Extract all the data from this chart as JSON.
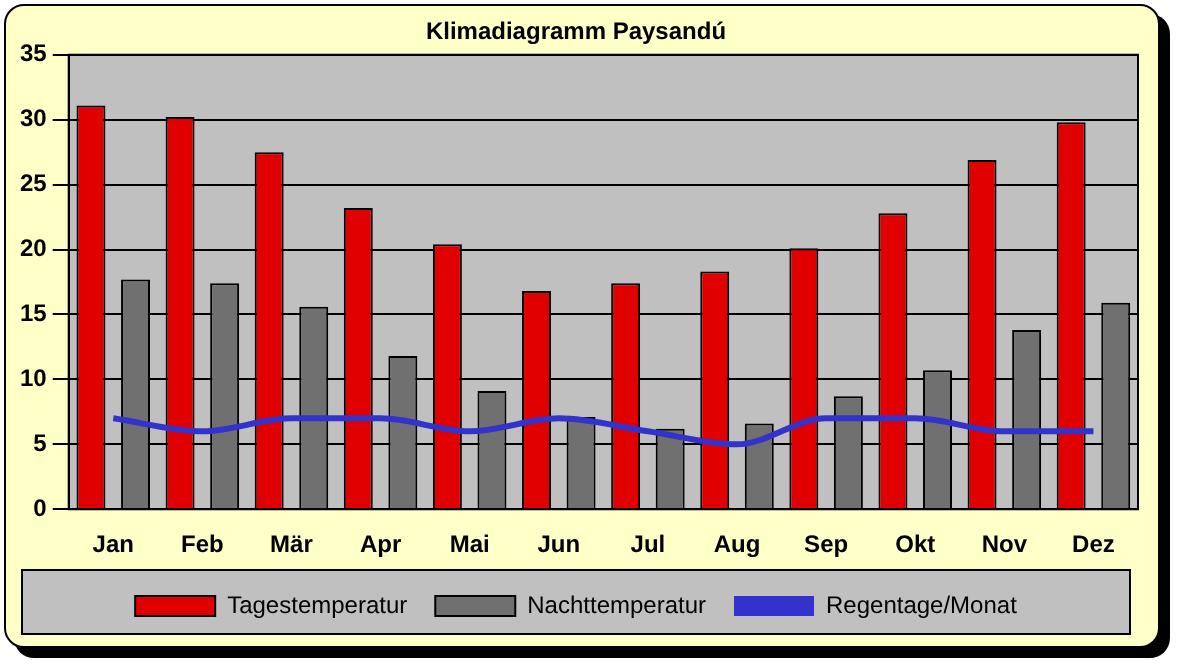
{
  "chart_data": {
    "type": "bar",
    "title": "Klimadiagramm Paysandú",
    "categories": [
      "Jan",
      "Feb",
      "Mär",
      "Apr",
      "Mai",
      "Jun",
      "Jul",
      "Aug",
      "Sep",
      "Okt",
      "Nov",
      "Dez"
    ],
    "series": [
      {
        "name": "Tagestemperatur",
        "color": "#e00000",
        "values": [
          31.1,
          30.2,
          27.5,
          23.2,
          20.4,
          16.8,
          17.4,
          18.3,
          20.1,
          22.8,
          26.9,
          29.8
        ]
      },
      {
        "name": "Nachttemperatur",
        "color": "#707070",
        "values": [
          17.7,
          17.4,
          15.6,
          11.8,
          9.1,
          7.1,
          6.2,
          6.6,
          8.7,
          10.7,
          13.8,
          15.9
        ]
      },
      {
        "name": "Regentage/Monat",
        "type": "line",
        "color": "#3333cc",
        "marker": "none",
        "values": [
          7,
          6,
          7,
          7,
          6,
          7,
          6,
          5,
          7,
          7,
          6,
          6
        ]
      }
    ],
    "ylim": [
      0,
      35
    ],
    "yticks": [
      0,
      5,
      10,
      15,
      20,
      25,
      30,
      35
    ],
    "grid": "y",
    "legend": "bottom"
  }
}
